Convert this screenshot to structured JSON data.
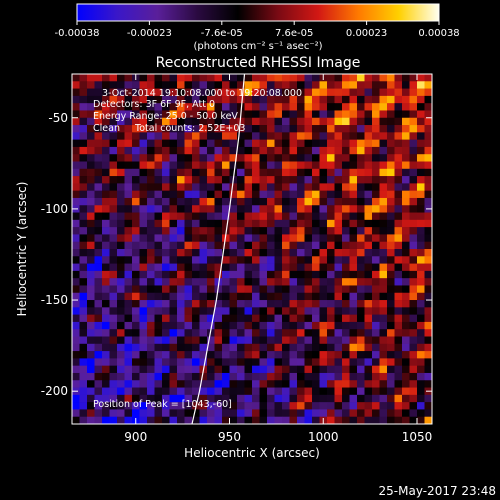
{
  "chart_data": {
    "type": "heatmap",
    "title": "Reconstructed RHESSI Image",
    "xlabel": "Heliocentric X (arcsec)",
    "ylabel": "Heliocentric Y (arcsec)",
    "xlim": [
      866,
      1058
    ],
    "ylim": [
      -218,
      -26
    ],
    "x_ticks": [
      900,
      950,
      1000,
      1050
    ],
    "y_ticks": [
      -50,
      -100,
      -150,
      -200
    ],
    "colorbar": {
      "range": [
        -0.00038,
        0.00038
      ],
      "ticks": [
        "-0.00038",
        "-0.00023",
        "-7.6e-05",
        "7.6e-05",
        "0.00023",
        "0.00038"
      ],
      "unit_label": "(photons cm⁻² s⁻¹ asec⁻²)",
      "colormap": [
        "#0000ff",
        "#3a17c8",
        "#5a1f9a",
        "#2a0a40",
        "#000000",
        "#7a0a14",
        "#d21814",
        "#ff7a00",
        "#ffd000",
        "#fffff0"
      ]
    },
    "annotations": [
      "3-Oct-2014 19:10:08.000 to 19:20:08.000",
      "Detectors: 3F 6F 9F, Att 0",
      "Energy Range: 25.0 - 50.0 keV",
      "Clean     Total counts: 2.52E+03"
    ],
    "peak_label": "Position of Peak = [1043,-60]",
    "limb_curve": [
      [
        958,
        -26
      ],
      [
        955,
        -60
      ],
      [
        950,
        -100
      ],
      [
        943,
        -150
      ],
      [
        934,
        -200
      ],
      [
        930,
        -218
      ]
    ],
    "image_grid": {
      "cols": 48,
      "rows": 48,
      "pattern": "diagonal-fringe, bright upper-right, dark lower-left"
    }
  },
  "footer": {
    "date": "25-May-2017 23:48"
  }
}
